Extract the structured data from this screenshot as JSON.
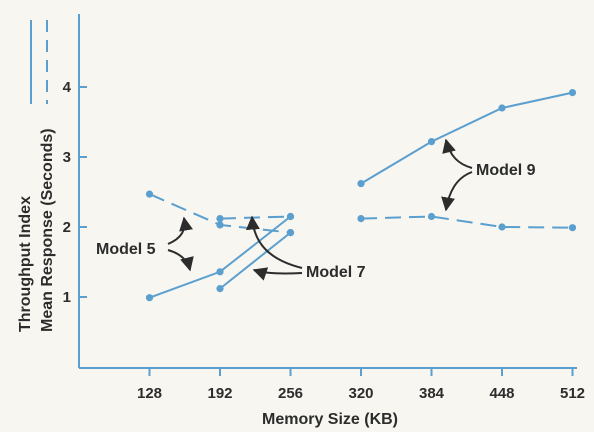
{
  "chart_data": {
    "type": "line",
    "xlabel": "Memory Size (KB)",
    "ylabel_lines": [
      "Throughput Index",
      "Mean Response (Seconds)"
    ],
    "x_ticks": [
      "128",
      "192",
      "256",
      "320",
      "384",
      "448",
      "512"
    ],
    "y_ticks": [
      "1",
      "2",
      "3",
      "4"
    ],
    "xlim": [
      64,
      512
    ],
    "ylim": [
      0,
      4.2
    ],
    "grid": false,
    "legend": "left-vertical",
    "series": [
      {
        "group": "Model 5",
        "metric": "throughput",
        "style": "solid",
        "x": [
          128,
          192,
          256
        ],
        "y": [
          0.99,
          1.36,
          2.15
        ]
      },
      {
        "group": "Model 5",
        "metric": "response",
        "style": "dashed",
        "x": [
          128,
          192,
          256
        ],
        "y": [
          2.47,
          2.03,
          1.92
        ]
      },
      {
        "group": "Model 7",
        "metric": "throughput",
        "style": "solid",
        "x": [
          192,
          256
        ],
        "y": [
          1.12,
          1.92
        ]
      },
      {
        "group": "Model 7",
        "metric": "response",
        "style": "dashed",
        "x": [
          192,
          256
        ],
        "y": [
          2.12,
          2.15
        ]
      },
      {
        "group": "Model 9",
        "metric": "throughput",
        "style": "solid",
        "x": [
          320,
          384,
          448,
          512
        ],
        "y": [
          2.62,
          3.22,
          3.7,
          3.92
        ]
      },
      {
        "group": "Model 9",
        "metric": "response",
        "style": "dashed",
        "x": [
          320,
          384,
          448,
          512
        ],
        "y": [
          2.12,
          2.15,
          2.0,
          1.99
        ]
      }
    ],
    "annotations": [
      "Model 5",
      "Model 7",
      "Model 9"
    ],
    "colors": {
      "line": "#5b9fcf",
      "text": "#2c2c2c",
      "arrow": "#2c2c2c",
      "background": "#f7f6f1"
    }
  }
}
